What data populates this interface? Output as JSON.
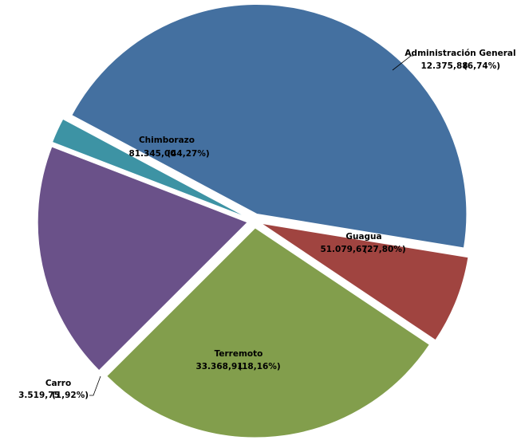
{
  "chart_data": {
    "type": "pie",
    "title": "",
    "slices": [
      {
        "name": "Chimborazo",
        "value": 81345.0,
        "percent": 44.27,
        "value_text": "81.345,00",
        "percent_text": "(44,27%)",
        "color": "#4470A0"
      },
      {
        "name": "Administración General",
        "value": 12375.88,
        "percent": 6.74,
        "value_text": "12.375,88",
        "percent_text": "(6,74%)",
        "color": "#A04440"
      },
      {
        "name": "Guagua",
        "value": 51079.67,
        "percent": 27.8,
        "value_text": "51.079,67",
        "percent_text": "(27,80%)",
        "color": "#829E4C"
      },
      {
        "name": "Terremoto",
        "value": 33368.91,
        "percent": 18.16,
        "value_text": "33.368,91",
        "percent_text": "(18,16%)",
        "color": "#6A5189"
      },
      {
        "name": "Carro",
        "value": 3519.75,
        "percent": 1.92,
        "value_text": "3.519,75",
        "percent_text": "(1,92%)",
        "color": "#3D93A4"
      }
    ]
  }
}
